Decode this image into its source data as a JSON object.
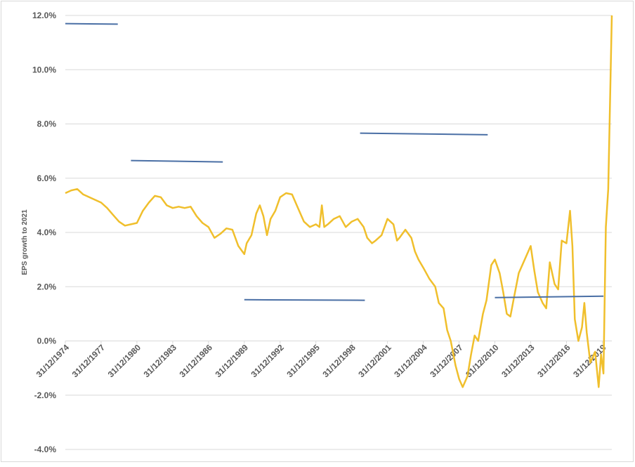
{
  "chart_data": {
    "type": "line",
    "ylabel": "EPS growth to 2021",
    "xlim": [
      1975.0,
      2020.8
    ],
    "xticks": [
      {
        "value": 1975.0,
        "label": "31/12/1974"
      },
      {
        "value": 1978.0,
        "label": "31/12/1977"
      },
      {
        "value": 1981.0,
        "label": "31/12/1980"
      },
      {
        "value": 1984.0,
        "label": "31/12/1983"
      },
      {
        "value": 1987.0,
        "label": "31/12/1986"
      },
      {
        "value": 1990.0,
        "label": "31/12/1989"
      },
      {
        "value": 1993.0,
        "label": "31/12/1992"
      },
      {
        "value": 1996.0,
        "label": "31/12/1995"
      },
      {
        "value": 1999.0,
        "label": "31/12/1998"
      },
      {
        "value": 2002.0,
        "label": "31/12/2001"
      },
      {
        "value": 2005.0,
        "label": "31/12/2004"
      },
      {
        "value": 2008.0,
        "label": "31/12/2007"
      },
      {
        "value": 2011.0,
        "label": "31/12/2010"
      },
      {
        "value": 2014.0,
        "label": "31/12/2013"
      },
      {
        "value": 2017.0,
        "label": "31/12/2016"
      },
      {
        "value": 2020.0,
        "label": "31/12/2019"
      }
    ],
    "ylim": [
      -4,
      12
    ],
    "yticks": [
      {
        "value": -4,
        "label": "-4.0%"
      },
      {
        "value": -2,
        "label": "-2.0%"
      },
      {
        "value": 0,
        "label": "0.0%"
      },
      {
        "value": 2,
        "label": "2.0%"
      },
      {
        "value": 4,
        "label": "4.0%"
      },
      {
        "value": 6,
        "label": "6.0%"
      },
      {
        "value": 8,
        "label": "8.0%"
      },
      {
        "value": 10,
        "label": "10.0%"
      },
      {
        "value": 12,
        "label": "12.0%"
      }
    ],
    "grid": true,
    "series": [
      {
        "color": "#f0bf2c",
        "x": [
          1975.0,
          1975.5,
          1976.0,
          1976.5,
          1977.0,
          1978.0,
          1978.5,
          1979.0,
          1979.5,
          1980.0,
          1980.5,
          1981.0,
          1981.5,
          1982.0,
          1982.5,
          1983.0,
          1983.5,
          1984.0,
          1984.5,
          1985.0,
          1985.5,
          1986.0,
          1986.5,
          1987.0,
          1987.5,
          1988.0,
          1988.5,
          1989.0,
          1989.5,
          1990.0,
          1990.2,
          1990.6,
          1991.0,
          1991.3,
          1991.6,
          1991.9,
          1992.2,
          1992.6,
          1993.0,
          1993.5,
          1994.0,
          1994.5,
          1995.0,
          1995.5,
          1996.0,
          1996.3,
          1996.5,
          1996.7,
          1997.0,
          1997.5,
          1998.0,
          1998.5,
          1999.0,
          1999.5,
          2000.0,
          2000.3,
          2000.7,
          2001.0,
          2001.5,
          2002.0,
          2002.5,
          2002.8,
          2003.0,
          2003.5,
          2004.0,
          2004.3,
          2004.6,
          2005.0,
          2005.5,
          2006.0,
          2006.3,
          2006.7,
          2007.0,
          2007.3,
          2007.7,
          2008.0,
          2008.3,
          2008.7,
          2009.0,
          2009.3,
          2009.6,
          2010.0,
          2010.3,
          2010.7,
          2011.0,
          2011.4,
          2011.7,
          2012.0,
          2012.3,
          2012.6,
          2013.0,
          2013.5,
          2014.0,
          2014.3,
          2014.6,
          2015.0,
          2015.3,
          2015.6,
          2016.0,
          2016.3,
          2016.6,
          2017.0,
          2017.3,
          2017.5,
          2017.7,
          2018.0,
          2018.3,
          2018.5,
          2018.7,
          2019.0,
          2019.4,
          2019.7,
          2019.9,
          2020.1,
          2020.3,
          2020.5,
          2020.8
        ],
        "values": [
          5.45,
          5.55,
          5.6,
          5.4,
          5.3,
          5.1,
          4.9,
          4.65,
          4.4,
          4.25,
          4.3,
          4.35,
          4.8,
          5.1,
          5.35,
          5.3,
          5.0,
          4.9,
          4.95,
          4.9,
          4.95,
          4.6,
          4.35,
          4.2,
          3.8,
          3.95,
          4.15,
          4.1,
          3.5,
          3.2,
          3.6,
          3.9,
          4.7,
          5.0,
          4.6,
          3.9,
          4.5,
          4.8,
          5.3,
          5.45,
          5.4,
          4.9,
          4.4,
          4.2,
          4.3,
          4.2,
          5.0,
          4.2,
          4.3,
          4.5,
          4.6,
          4.2,
          4.4,
          4.5,
          4.2,
          3.8,
          3.6,
          3.7,
          3.9,
          4.5,
          4.3,
          3.7,
          3.8,
          4.1,
          3.8,
          3.3,
          3.0,
          2.7,
          2.3,
          2.0,
          1.4,
          1.2,
          0.4,
          0.0,
          -0.9,
          -1.4,
          -1.7,
          -1.3,
          -0.5,
          0.2,
          0.0,
          1.0,
          1.5,
          2.8,
          3.0,
          2.5,
          1.8,
          1.0,
          0.9,
          1.6,
          2.5,
          3.0,
          3.5,
          2.6,
          1.8,
          1.4,
          1.2,
          2.9,
          2.1,
          1.9,
          3.7,
          3.6,
          4.8,
          3.5,
          0.8,
          0.0,
          0.5,
          1.4,
          0.3,
          -0.8,
          -0.4,
          -1.7,
          -0.5,
          -1.2,
          4.2,
          5.6,
          12.0
        ]
      },
      {
        "color": "#4a6fa5",
        "x": [
          1975.0,
          1979.4
        ],
        "values": [
          11.7,
          11.68
        ]
      },
      {
        "color": "#4a6fa5",
        "x": [
          1980.5,
          1988.2
        ],
        "values": [
          6.65,
          6.6
        ]
      },
      {
        "color": "#4a6fa5",
        "x": [
          1990.0,
          2000.1
        ],
        "values": [
          1.52,
          1.5
        ]
      },
      {
        "color": "#4a6fa5",
        "x": [
          1999.7,
          2010.4
        ],
        "values": [
          7.66,
          7.6
        ]
      },
      {
        "color": "#4a6fa5",
        "x": [
          2011.0,
          2020.1
        ],
        "values": [
          1.6,
          1.65
        ]
      }
    ]
  }
}
